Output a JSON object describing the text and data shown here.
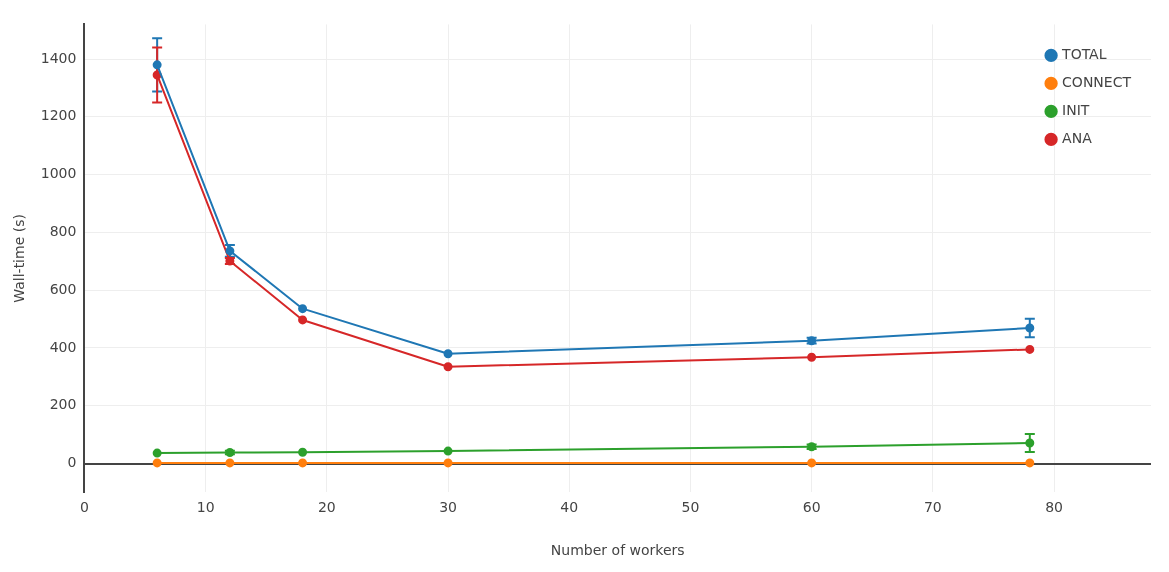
{
  "chart_data": {
    "type": "line",
    "xlabel": "Number of workers",
    "ylabel": "Wall-time (s)",
    "x": [
      6,
      12,
      18,
      30,
      60,
      78
    ],
    "series": [
      {
        "name": "TOTAL",
        "color": "#1f77b4",
        "values": [
          1380,
          736,
          536,
          380,
          425,
          469
        ],
        "errors": [
          92,
          20,
          null,
          null,
          10,
          32
        ]
      },
      {
        "name": "CONNECT",
        "color": "#ff7f0e",
        "values": [
          2,
          2,
          2,
          2,
          2,
          2
        ]
      },
      {
        "name": "INIT",
        "color": "#2ca02c",
        "values": [
          36,
          38,
          39,
          43,
          58,
          71
        ],
        "errors": [
          null,
          6,
          null,
          null,
          8,
          31
        ]
      },
      {
        "name": "ANA",
        "color": "#d62728",
        "values": [
          1345,
          701,
          497,
          335,
          368,
          395
        ],
        "errors": [
          95,
          10,
          null,
          null,
          null,
          null
        ]
      }
    ],
    "xlim": [
      0,
      88
    ],
    "xticks": [
      0,
      10,
      20,
      30,
      40,
      50,
      60,
      70,
      80
    ],
    "ylim": [
      -100,
      1520
    ],
    "yticks": [
      0,
      200,
      400,
      600,
      800,
      1000,
      1200,
      1400
    ],
    "grid": true,
    "legend": "top right",
    "marker": "circle",
    "line_style": "solid"
  }
}
